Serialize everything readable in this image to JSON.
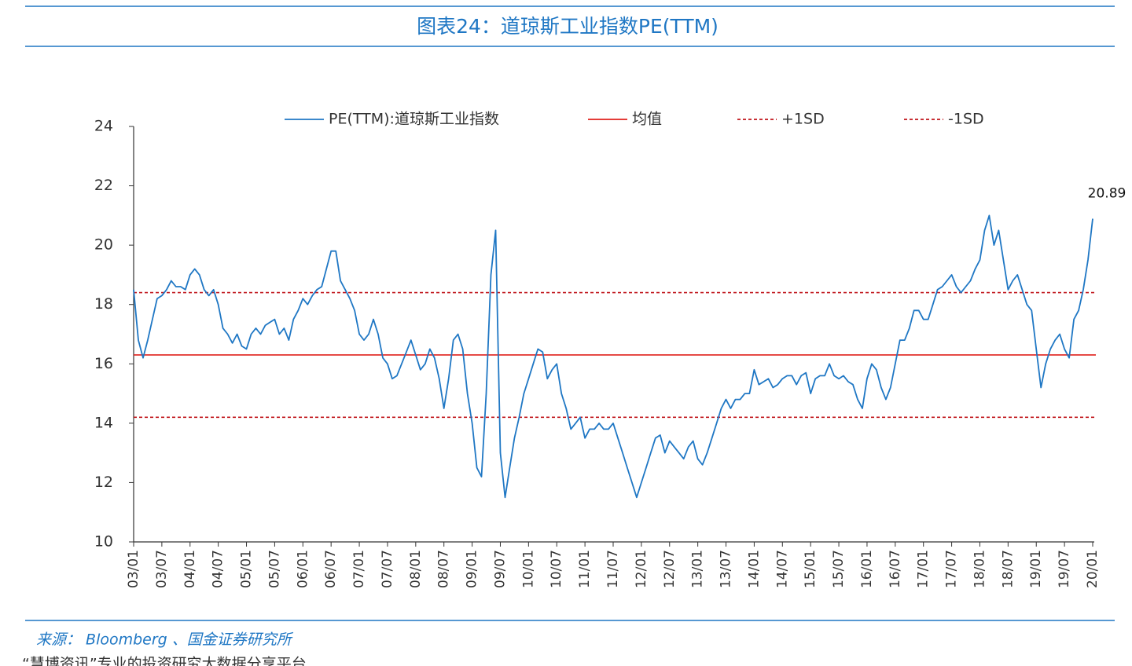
{
  "chart_data": {
    "type": "line",
    "title": "图表24：道琼斯工业指数PE(TTM)",
    "source": "来源： Bloomberg 、国金证券研究所",
    "footer": "“慧博资讯”专业的投资研究大数据分享平台",
    "x": [
      "03/01",
      "03/02",
      "03/03",
      "03/04",
      "03/05",
      "03/06",
      "03/07",
      "03/08",
      "03/09",
      "03/10",
      "03/11",
      "03/12",
      "04/01",
      "04/02",
      "04/03",
      "04/04",
      "04/05",
      "04/06",
      "04/07",
      "04/08",
      "04/09",
      "04/10",
      "04/11",
      "04/12",
      "05/01",
      "05/02",
      "05/03",
      "05/04",
      "05/05",
      "05/06",
      "05/07",
      "05/08",
      "05/09",
      "05/10",
      "05/11",
      "05/12",
      "06/01",
      "06/02",
      "06/03",
      "06/04",
      "06/05",
      "06/06",
      "06/07",
      "06/08",
      "06/09",
      "06/10",
      "06/11",
      "06/12",
      "07/01",
      "07/02",
      "07/03",
      "07/04",
      "07/05",
      "07/06",
      "07/07",
      "07/08",
      "07/09",
      "07/10",
      "07/11",
      "07/12",
      "08/01",
      "08/02",
      "08/03",
      "08/04",
      "08/05",
      "08/06",
      "08/07",
      "08/08",
      "08/09",
      "08/10",
      "08/11",
      "08/12",
      "09/01",
      "09/02",
      "09/03",
      "09/04",
      "09/05",
      "09/06",
      "09/07",
      "09/08",
      "09/09",
      "09/10",
      "09/11",
      "09/12",
      "10/01",
      "10/02",
      "10/03",
      "10/04",
      "10/05",
      "10/06",
      "10/07",
      "10/08",
      "10/09",
      "10/10",
      "10/11",
      "10/12",
      "11/01",
      "11/02",
      "11/03",
      "11/04",
      "11/05",
      "11/06",
      "11/07",
      "11/08",
      "11/09",
      "11/10",
      "11/11",
      "11/12",
      "12/01",
      "12/02",
      "12/03",
      "12/04",
      "12/05",
      "12/06",
      "12/07",
      "12/08",
      "12/09",
      "12/10",
      "12/11",
      "12/12",
      "13/01",
      "13/02",
      "13/03",
      "13/04",
      "13/05",
      "13/06",
      "13/07",
      "13/08",
      "13/09",
      "13/10",
      "13/11",
      "13/12",
      "14/01",
      "14/02",
      "14/03",
      "14/04",
      "14/05",
      "14/06",
      "14/07",
      "14/08",
      "14/09",
      "14/10",
      "14/11",
      "14/12",
      "15/01",
      "15/02",
      "15/03",
      "15/04",
      "15/05",
      "15/06",
      "15/07",
      "15/08",
      "15/09",
      "15/10",
      "15/11",
      "15/12",
      "16/01",
      "16/02",
      "16/03",
      "16/04",
      "16/05",
      "16/06",
      "16/07",
      "16/08",
      "16/09",
      "16/10",
      "16/11",
      "16/12",
      "17/01",
      "17/02",
      "17/03",
      "17/04",
      "17/05",
      "17/06",
      "17/07",
      "17/08",
      "17/09",
      "17/10",
      "17/11",
      "17/12",
      "18/01",
      "18/02",
      "18/03",
      "18/04",
      "18/05",
      "18/06",
      "18/07",
      "18/08",
      "18/09",
      "18/10",
      "18/11",
      "18/12",
      "19/01",
      "19/02",
      "19/03",
      "19/04",
      "19/05",
      "19/06",
      "19/07",
      "19/08",
      "19/09",
      "19/10",
      "19/11",
      "19/12",
      "20/01"
    ],
    "xticks": [
      "03/01",
      "03/07",
      "04/01",
      "04/07",
      "05/01",
      "05/07",
      "06/01",
      "06/07",
      "07/01",
      "07/07",
      "08/01",
      "08/07",
      "09/01",
      "09/07",
      "10/01",
      "10/07",
      "11/01",
      "11/07",
      "12/01",
      "12/07",
      "13/01",
      "13/07",
      "14/01",
      "14/07",
      "15/01",
      "15/07",
      "16/01",
      "16/07",
      "17/01",
      "17/07",
      "18/01",
      "18/07",
      "19/01",
      "19/07",
      "20/01"
    ],
    "series": [
      {
        "name": "PE(TTM):道琼斯工业指数",
        "color": "#1f77c4",
        "values": [
          18.5,
          16.8,
          16.2,
          16.8,
          17.5,
          18.2,
          18.3,
          18.5,
          18.8,
          18.6,
          18.6,
          18.5,
          19.0,
          19.2,
          19.0,
          18.5,
          18.3,
          18.5,
          18.0,
          17.2,
          17.0,
          16.7,
          17.0,
          16.6,
          16.5,
          17.0,
          17.2,
          17.0,
          17.3,
          17.4,
          17.5,
          17.0,
          17.2,
          16.8,
          17.5,
          17.8,
          18.2,
          18.0,
          18.3,
          18.5,
          18.6,
          19.2,
          19.8,
          19.8,
          18.8,
          18.5,
          18.2,
          17.8,
          17.0,
          16.8,
          17.0,
          17.5,
          17.0,
          16.2,
          16.0,
          15.5,
          15.6,
          16.0,
          16.4,
          16.8,
          16.3,
          15.8,
          16.0,
          16.5,
          16.2,
          15.5,
          14.5,
          15.5,
          16.8,
          17.0,
          16.5,
          15.0,
          14.0,
          12.5,
          12.2,
          15.0,
          19.0,
          20.5,
          13.0,
          11.5,
          12.5,
          13.5,
          14.2,
          15.0,
          15.5,
          16.0,
          16.5,
          16.4,
          15.5,
          15.8,
          16.0,
          15.0,
          14.5,
          13.8,
          14.0,
          14.2,
          13.5,
          13.8,
          13.8,
          14.0,
          13.8,
          13.8,
          14.0,
          13.5,
          13.0,
          12.5,
          12.0,
          11.5,
          12.0,
          12.5,
          13.0,
          13.5,
          13.6,
          13.0,
          13.4,
          13.2,
          13.0,
          12.8,
          13.2,
          13.4,
          12.8,
          12.6,
          13.0,
          13.5,
          14.0,
          14.5,
          14.8,
          14.5,
          14.8,
          14.8,
          15.0,
          15.0,
          15.8,
          15.3,
          15.4,
          15.5,
          15.2,
          15.3,
          15.5,
          15.6,
          15.6,
          15.3,
          15.6,
          15.7,
          15.0,
          15.5,
          15.6,
          15.6,
          16.0,
          15.6,
          15.5,
          15.6,
          15.4,
          15.3,
          14.8,
          14.5,
          15.5,
          16.0,
          15.8,
          15.2,
          14.8,
          15.2,
          16.0,
          16.8,
          16.8,
          17.2,
          17.8,
          17.8,
          17.5,
          17.5,
          18.0,
          18.5,
          18.6,
          18.8,
          19.0,
          18.6,
          18.4,
          18.6,
          18.8,
          19.2,
          19.5,
          20.5,
          21.0,
          20.0,
          20.5,
          19.5,
          18.5,
          18.8,
          19.0,
          18.5,
          18.0,
          17.8,
          16.5,
          15.2,
          16.0,
          16.5,
          16.8,
          17.0,
          16.5,
          16.2,
          17.5,
          17.8,
          18.5,
          19.5,
          20.89
        ]
      }
    ],
    "hlines": [
      {
        "name": "均值",
        "value": 16.3,
        "color": "#e0201b",
        "dashed": false
      },
      {
        "name": "+1SD",
        "value": 18.4,
        "color": "#c0141a",
        "dashed": true
      },
      {
        "name": "-1SD",
        "value": 14.2,
        "color": "#c0141a",
        "dashed": true
      }
    ],
    "ylim": [
      10,
      24
    ],
    "yticks": [
      10,
      12,
      14,
      16,
      18,
      20,
      22,
      24
    ],
    "legend": "top"
  }
}
